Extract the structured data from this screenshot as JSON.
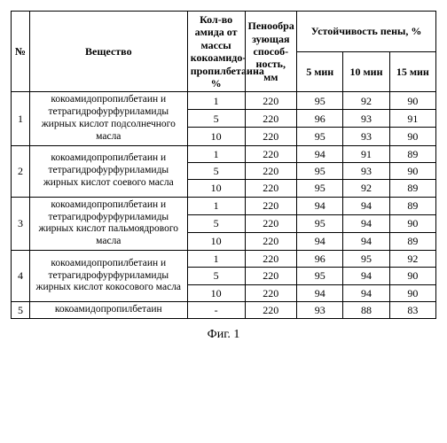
{
  "header": {
    "num": "№",
    "substance": "Вещество",
    "amide": "Кол-во амида от массы кокоамидо-пропилбетаина %",
    "foam": "Пенообра зующая способ-ность, мм",
    "stability": "Устойчивость пены, %",
    "t5": "5 мин",
    "t10": "10 мин",
    "t15": "15 мин"
  },
  "rows": [
    {
      "num": "1",
      "substance": "кокоамидопропилбетаин и тетрагидрофурфуриламиды жирных кислот подсолнечного масла",
      "lines": [
        {
          "amide": "1",
          "foam": "220",
          "s5": "95",
          "s10": "92",
          "s15": "90"
        },
        {
          "amide": "5",
          "foam": "220",
          "s5": "96",
          "s10": "93",
          "s15": "91"
        },
        {
          "amide": "10",
          "foam": "220",
          "s5": "95",
          "s10": "93",
          "s15": "90"
        }
      ]
    },
    {
      "num": "2",
      "substance": "кокоамидопропилбетаин и тетрагидрофурфуриламиды жирных кислот соевого масла",
      "lines": [
        {
          "amide": "1",
          "foam": "220",
          "s5": "94",
          "s10": "91",
          "s15": "89"
        },
        {
          "amide": "5",
          "foam": "220",
          "s5": "95",
          "s10": "93",
          "s15": "90"
        },
        {
          "amide": "10",
          "foam": "220",
          "s5": "95",
          "s10": "92",
          "s15": "89"
        }
      ]
    },
    {
      "num": "3",
      "substance": "кокоамидопропилбетаин и тетрагидрофурфуриламиды жирных кислот пальмоядрового масла",
      "lines": [
        {
          "amide": "1",
          "foam": "220",
          "s5": "94",
          "s10": "94",
          "s15": "89"
        },
        {
          "amide": "5",
          "foam": "220",
          "s5": "95",
          "s10": "94",
          "s15": "90"
        },
        {
          "amide": "10",
          "foam": "220",
          "s5": "94",
          "s10": "94",
          "s15": "89"
        }
      ]
    },
    {
      "num": "4",
      "substance": "кокоамидопропилбетаин и тетрагидрофурфуриламиды жирных кислот кокосового масла",
      "lines": [
        {
          "amide": "1",
          "foam": "220",
          "s5": "96",
          "s10": "95",
          "s15": "92"
        },
        {
          "amide": "5",
          "foam": "220",
          "s5": "95",
          "s10": "94",
          "s15": "90"
        },
        {
          "amide": "10",
          "foam": "220",
          "s5": "94",
          "s10": "94",
          "s15": "90"
        }
      ]
    },
    {
      "num": "5",
      "substance": "кокоамидопропилбетаин",
      "lines": [
        {
          "amide": "-",
          "foam": "220",
          "s5": "93",
          "s10": "88",
          "s15": "83"
        }
      ]
    }
  ],
  "caption": "Фиг. 1"
}
